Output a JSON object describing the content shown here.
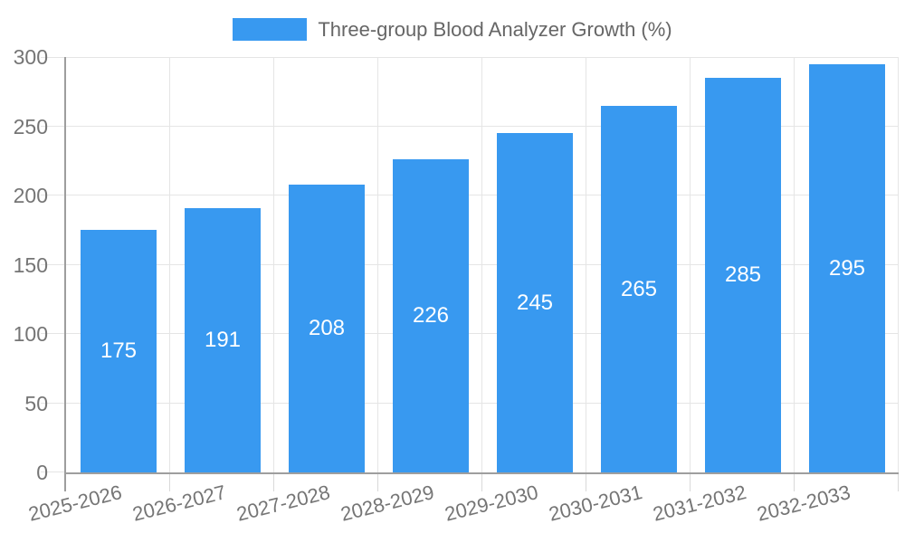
{
  "chart_data": {
    "type": "bar",
    "title": "Three-group Blood Analyzer Growth (%)",
    "categories": [
      "2025-2026",
      "2026-2027",
      "2027-2028",
      "2028-2029",
      "2029-2030",
      "2030-2031",
      "2031-2032",
      "2032-2033"
    ],
    "series": [
      {
        "name": "Three-group Blood Analyzer Growth (%)",
        "values": [
          175,
          191,
          208,
          226,
          245,
          265,
          285,
          295
        ]
      }
    ],
    "value_labels_shown": true,
    "xlabel": "",
    "ylabel": "",
    "ylim": [
      0,
      300
    ],
    "yticks": [
      0,
      50,
      100,
      150,
      200,
      250,
      300
    ],
    "grid": "on",
    "legend_position": "top-center",
    "colors": {
      "bar": "#3899f0",
      "grid": "#e5e5e5",
      "axis": "#9e9e9e",
      "tick_label": "#757575",
      "title": "#666666",
      "value_label": "#ffffff",
      "background": "#ffffff"
    }
  }
}
